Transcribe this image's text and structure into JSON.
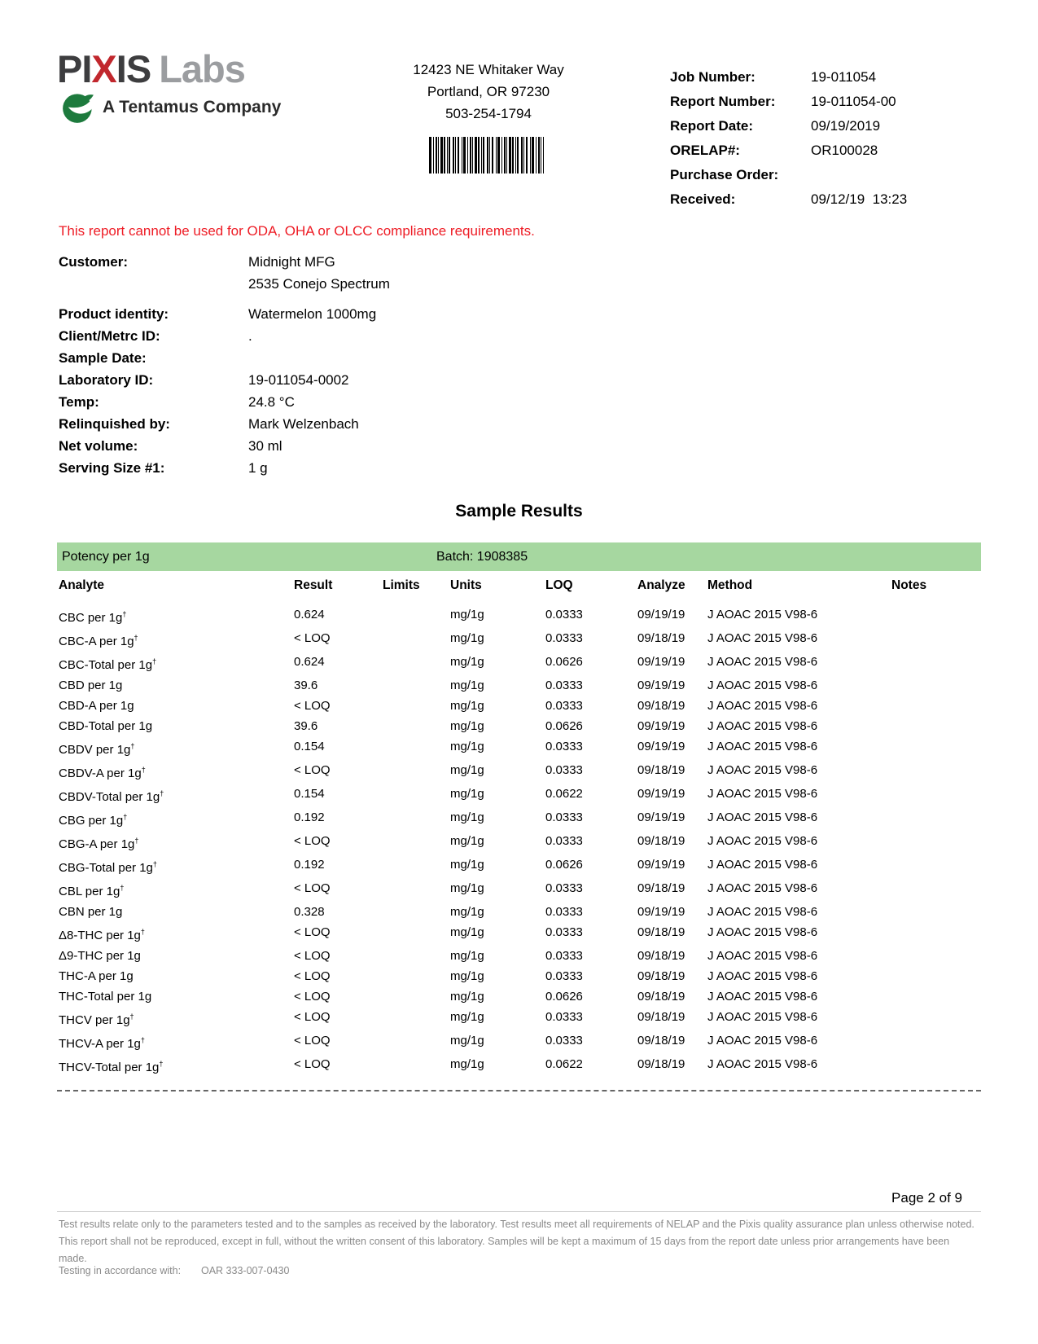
{
  "logo": {
    "name_part1": "PI",
    "name_accent": "X",
    "name_part2": "IS",
    "name_suffix": "Labs",
    "tagline": "A Tentamus Company"
  },
  "lab_address": {
    "line1": "12423 NE Whitaker Way",
    "line2": "Portland, OR 97230",
    "line3": "503-254-1794"
  },
  "job_info": {
    "rows": [
      {
        "label": "Job Number:",
        "value": "19-011054"
      },
      {
        "label": "Report Number:",
        "value": "19-011054-00"
      },
      {
        "label": "Report Date:",
        "value": "09/19/2019"
      },
      {
        "label": "ORELAP#:",
        "value": "OR100028"
      },
      {
        "label": "Purchase Order:",
        "value": ""
      },
      {
        "label": "Received:",
        "value": "09/12/19  13:23"
      }
    ]
  },
  "notice": "This report cannot be used for ODA, OHA or OLCC compliance requirements.",
  "customer": {
    "label": "Customer:",
    "name": "Midnight MFG",
    "address": "2535 Conejo Spectrum"
  },
  "sample_info": {
    "rows": [
      {
        "label": "Product identity:",
        "value": "Watermelon 1000mg"
      },
      {
        "label": "Client/Metrc ID:",
        "value": "."
      },
      {
        "label": "Sample Date:",
        "value": ""
      },
      {
        "label": "Laboratory ID:",
        "value": "19-011054-0002"
      },
      {
        "label": "Temp:",
        "value": "24.8 °C"
      },
      {
        "label": "Relinquished by:",
        "value": "Mark Welzenbach"
      },
      {
        "label": "Net volume:",
        "value": "30 ml"
      },
      {
        "label": "Serving Size #1:",
        "value": "1 g"
      }
    ]
  },
  "sample_results": {
    "title": "Sample Results",
    "panel_title": "Potency per 1g",
    "batch_label": "Batch: 1908385",
    "columns": [
      "Analyte",
      "Result",
      "Limits",
      "Units",
      "LOQ",
      "Analyze",
      "Method",
      "Notes"
    ],
    "rows": [
      {
        "analyte": "CBC per 1g",
        "dagger": true,
        "result": "0.624",
        "limits": "",
        "units": "mg/1g",
        "loq": "0.0333",
        "analyze": "09/19/19",
        "method": "J AOAC 2015 V98-6",
        "notes": ""
      },
      {
        "analyte": "CBC-A per 1g",
        "dagger": true,
        "result": "< LOQ",
        "limits": "",
        "units": "mg/1g",
        "loq": "0.0333",
        "analyze": "09/18/19",
        "method": "J AOAC 2015 V98-6",
        "notes": ""
      },
      {
        "analyte": "CBC-Total per 1g",
        "dagger": true,
        "result": "0.624",
        "limits": "",
        "units": "mg/1g",
        "loq": "0.0626",
        "analyze": "09/19/19",
        "method": "J AOAC 2015 V98-6",
        "notes": ""
      },
      {
        "analyte": "CBD per 1g",
        "dagger": false,
        "result": "39.6",
        "limits": "",
        "units": "mg/1g",
        "loq": "0.0333",
        "analyze": "09/19/19",
        "method": "J AOAC 2015 V98-6",
        "notes": ""
      },
      {
        "analyte": "CBD-A per 1g",
        "dagger": false,
        "result": "< LOQ",
        "limits": "",
        "units": "mg/1g",
        "loq": "0.0333",
        "analyze": "09/18/19",
        "method": "J AOAC 2015 V98-6",
        "notes": ""
      },
      {
        "analyte": "CBD-Total per 1g",
        "dagger": false,
        "result": "39.6",
        "limits": "",
        "units": "mg/1g",
        "loq": "0.0626",
        "analyze": "09/19/19",
        "method": "J AOAC 2015 V98-6",
        "notes": ""
      },
      {
        "analyte": "CBDV per 1g",
        "dagger": true,
        "result": "0.154",
        "limits": "",
        "units": "mg/1g",
        "loq": "0.0333",
        "analyze": "09/19/19",
        "method": "J AOAC 2015 V98-6",
        "notes": ""
      },
      {
        "analyte": "CBDV-A per 1g",
        "dagger": true,
        "result": "< LOQ",
        "limits": "",
        "units": "mg/1g",
        "loq": "0.0333",
        "analyze": "09/18/19",
        "method": "J AOAC 2015 V98-6",
        "notes": ""
      },
      {
        "analyte": "CBDV-Total per 1g",
        "dagger": true,
        "result": "0.154",
        "limits": "",
        "units": "mg/1g",
        "loq": "0.0622",
        "analyze": "09/19/19",
        "method": "J AOAC 2015 V98-6",
        "notes": ""
      },
      {
        "analyte": "CBG per 1g",
        "dagger": true,
        "result": "0.192",
        "limits": "",
        "units": "mg/1g",
        "loq": "0.0333",
        "analyze": "09/19/19",
        "method": "J AOAC 2015 V98-6",
        "notes": ""
      },
      {
        "analyte": "CBG-A per 1g",
        "dagger": true,
        "result": "< LOQ",
        "limits": "",
        "units": "mg/1g",
        "loq": "0.0333",
        "analyze": "09/18/19",
        "method": "J AOAC 2015 V98-6",
        "notes": ""
      },
      {
        "analyte": "CBG-Total per 1g",
        "dagger": true,
        "result": "0.192",
        "limits": "",
        "units": "mg/1g",
        "loq": "0.0626",
        "analyze": "09/19/19",
        "method": "J AOAC 2015 V98-6",
        "notes": ""
      },
      {
        "analyte": "CBL per 1g",
        "dagger": true,
        "result": "< LOQ",
        "limits": "",
        "units": "mg/1g",
        "loq": "0.0333",
        "analyze": "09/18/19",
        "method": "J AOAC 2015 V98-6",
        "notes": ""
      },
      {
        "analyte": "CBN per 1g",
        "dagger": false,
        "result": "0.328",
        "limits": "",
        "units": "mg/1g",
        "loq": "0.0333",
        "analyze": "09/19/19",
        "method": "J AOAC 2015 V98-6",
        "notes": ""
      },
      {
        "analyte": "Δ8-THC per 1g",
        "dagger": true,
        "result": "< LOQ",
        "limits": "",
        "units": "mg/1g",
        "loq": "0.0333",
        "analyze": "09/18/19",
        "method": "J AOAC 2015 V98-6",
        "notes": ""
      },
      {
        "analyte": "Δ9-THC per 1g",
        "dagger": false,
        "result": "< LOQ",
        "limits": "",
        "units": "mg/1g",
        "loq": "0.0333",
        "analyze": "09/18/19",
        "method": "J AOAC 2015 V98-6",
        "notes": ""
      },
      {
        "analyte": "THC-A per 1g",
        "dagger": false,
        "result": "< LOQ",
        "limits": "",
        "units": "mg/1g",
        "loq": "0.0333",
        "analyze": "09/18/19",
        "method": "J AOAC 2015 V98-6",
        "notes": ""
      },
      {
        "analyte": "THC-Total per 1g",
        "dagger": false,
        "result": "< LOQ",
        "limits": "",
        "units": "mg/1g",
        "loq": "0.0626",
        "analyze": "09/18/19",
        "method": "J AOAC 2015 V98-6",
        "notes": ""
      },
      {
        "analyte": "THCV per 1g",
        "dagger": true,
        "result": "< LOQ",
        "limits": "",
        "units": "mg/1g",
        "loq": "0.0333",
        "analyze": "09/18/19",
        "method": "J AOAC 2015 V98-6",
        "notes": ""
      },
      {
        "analyte": "THCV-A per 1g",
        "dagger": true,
        "result": "< LOQ",
        "limits": "",
        "units": "mg/1g",
        "loq": "0.0333",
        "analyze": "09/18/19",
        "method": "J AOAC 2015 V98-6",
        "notes": ""
      },
      {
        "analyte": "THCV-Total per 1g",
        "dagger": true,
        "result": "< LOQ",
        "limits": "",
        "units": "mg/1g",
        "loq": "0.0622",
        "analyze": "09/18/19",
        "method": "J AOAC 2015 V98-6",
        "notes": ""
      }
    ]
  },
  "footer": {
    "page_label": "Page 2 of 9",
    "disclaimer": "Test results relate only to the parameters tested and to the samples as received by the laboratory. Test results meet all requirements of NELAP and the Pixis quality assurance plan unless otherwise noted. This report shall not be reproduced, except in full, without the written consent of this laboratory. Samples will be kept a maximum of 15 days from the report date unless prior arrangements have been made.",
    "testing_label": "Testing in accordance with:",
    "testing_value": "OAR 333-007-0430"
  },
  "colors": {
    "banner_green": "#a6d7a0",
    "logo_red": "#c1272d",
    "logo_gray": "#9b9da0",
    "logo_dark": "#3d3d3f",
    "leaf_green": "#1d7a3d",
    "notice_red": "#ee1c25"
  }
}
